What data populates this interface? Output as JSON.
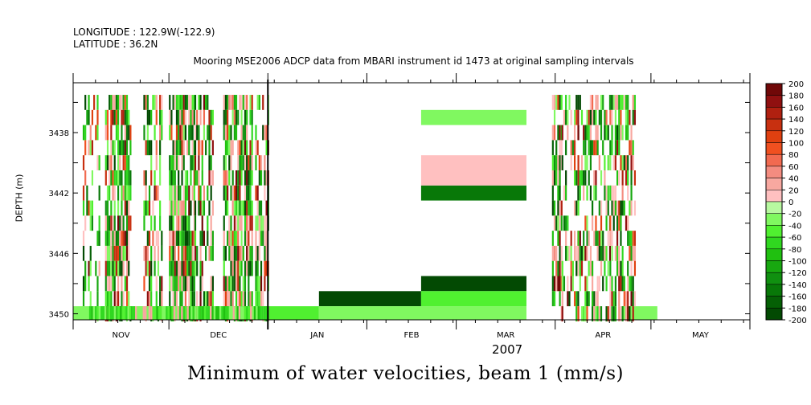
{
  "header": {
    "longitude": "LONGITUDE : 122.9W(-122.9)",
    "latitude": "LATITUDE : 36.2N",
    "title": "Mooring MSE2006 ADCP data from MBARI instrument id 1473 at original sampling intervals"
  },
  "caption": "Minimum of water velocities, beam 1 (mm/s)",
  "chart_data": {
    "type": "heatmap",
    "title": "Mooring MSE2006 ADCP data from MBARI instrument id 1473 at original sampling intervals",
    "xlabel": "2007",
    "ylabel": "DEPTH (m)",
    "x_months": [
      "NOV",
      "DEC",
      "JAN",
      "FEB",
      "MAR",
      "APR",
      "MAY"
    ],
    "year_label": "2007",
    "xlim_day": [
      0,
      212
    ],
    "ylim": [
      3450.4,
      3434.7
    ],
    "y_ticks": [
      3438,
      3442,
      3446,
      3450
    ],
    "depth_levels": [
      3436,
      3437,
      3438,
      3439,
      3440,
      3441,
      3442,
      3443,
      3444,
      3445,
      3446,
      3447,
      3448,
      3449,
      3450
    ],
    "colorbar": {
      "min": -200,
      "max": 200,
      "step": 20,
      "labels": [
        "200",
        "180",
        "160",
        "140",
        "120",
        "100",
        "80",
        "60",
        "40",
        "20",
        "0",
        "-20",
        "-40",
        "-60",
        "-80",
        "-100",
        "-120",
        "-140",
        "-160",
        "-180",
        "-200"
      ]
    },
    "blocks": [
      {
        "day_start": 0,
        "day_end": 61,
        "depth_start": 3449.5,
        "depth_end": 3450.4,
        "value": -30
      },
      {
        "day_start": 61,
        "day_end": 77,
        "depth_start": 3449.5,
        "depth_end": 3450.4,
        "value": -40
      },
      {
        "day_start": 77,
        "day_end": 109,
        "depth_start": 3448.5,
        "depth_end": 3449.5,
        "value": -190
      },
      {
        "day_start": 77,
        "day_end": 142,
        "depth_start": 3449.5,
        "depth_end": 3450.4,
        "value": -20
      },
      {
        "day_start": 109,
        "day_end": 142,
        "depth_start": 3447.5,
        "depth_end": 3448.5,
        "value": -190
      },
      {
        "day_start": 109,
        "day_end": 142,
        "depth_start": 3448.5,
        "depth_end": 3449.5,
        "value": -40
      },
      {
        "day_start": 109,
        "day_end": 142,
        "depth_start": 3441.5,
        "depth_end": 3442.5,
        "value": -150
      },
      {
        "day_start": 109,
        "day_end": 142,
        "depth_start": 3439.5,
        "depth_end": 3441.5,
        "value": 10
      },
      {
        "day_start": 109,
        "day_end": 142,
        "depth_start": 3436.5,
        "depth_end": 3437.5,
        "value": -20
      },
      {
        "day_start": 172,
        "day_end": 183,
        "depth_start": 3449.5,
        "depth_end": 3450.4,
        "value": -30
      }
    ],
    "scatter_note": "dense vertical streaks of mixed values during Nov-Dec and Mar-Apr"
  }
}
